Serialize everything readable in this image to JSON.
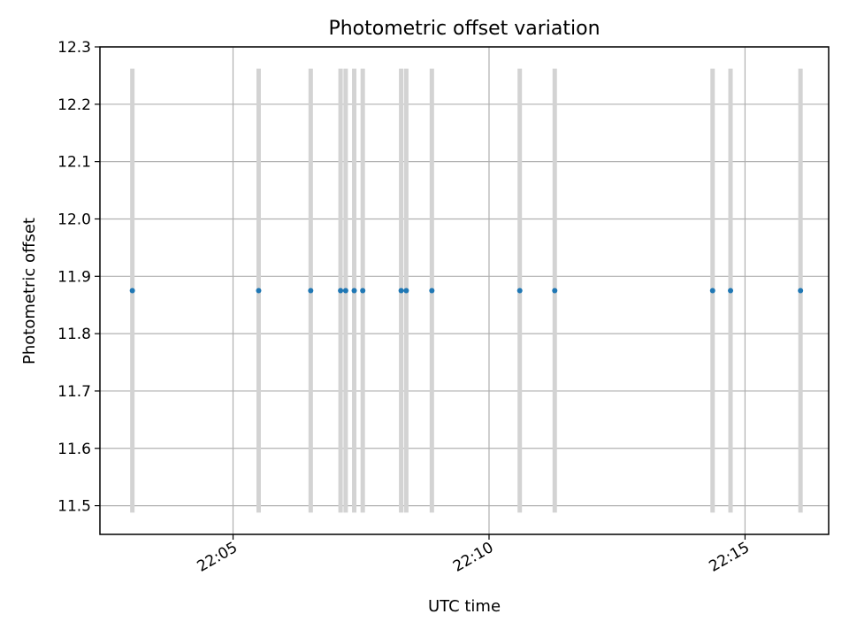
{
  "chart_data": {
    "type": "scatter",
    "title": "Photometric offset variation",
    "xlabel": "UTC time",
    "ylabel": "Photometric offset",
    "grid": true,
    "xlim": [
      "22:02:24",
      "22:16:38"
    ],
    "ylim": [
      11.45,
      12.3
    ],
    "x_ticks": [
      "22:05",
      "22:10",
      "22:15"
    ],
    "y_ticks": [
      11.5,
      11.6,
      11.7,
      11.8,
      11.9,
      12.0,
      12.1,
      12.2,
      12.3
    ],
    "point_color": "#1f77b4",
    "errorbar_color": "#d3d3d3",
    "points": [
      {
        "x": "22:03:02",
        "y": 11.875,
        "ylow": 11.488,
        "yhigh": 12.262
      },
      {
        "x": "22:05:30",
        "y": 11.875,
        "ylow": 11.488,
        "yhigh": 12.262
      },
      {
        "x": "22:06:31",
        "y": 11.875,
        "ylow": 11.488,
        "yhigh": 12.262
      },
      {
        "x": "22:07:06",
        "y": 11.875,
        "ylow": 11.488,
        "yhigh": 12.262
      },
      {
        "x": "22:07:12",
        "y": 11.875,
        "ylow": 11.488,
        "yhigh": 12.262
      },
      {
        "x": "22:07:22",
        "y": 11.875,
        "ylow": 11.488,
        "yhigh": 12.262
      },
      {
        "x": "22:07:32",
        "y": 11.875,
        "ylow": 11.488,
        "yhigh": 12.262
      },
      {
        "x": "22:08:17",
        "y": 11.875,
        "ylow": 11.488,
        "yhigh": 12.262
      },
      {
        "x": "22:08:23",
        "y": 11.875,
        "ylow": 11.488,
        "yhigh": 12.262
      },
      {
        "x": "22:08:53",
        "y": 11.875,
        "ylow": 11.488,
        "yhigh": 12.262
      },
      {
        "x": "22:10:36",
        "y": 11.875,
        "ylow": 11.488,
        "yhigh": 12.262
      },
      {
        "x": "22:11:17",
        "y": 11.875,
        "ylow": 11.488,
        "yhigh": 12.262
      },
      {
        "x": "22:14:22",
        "y": 11.875,
        "ylow": 11.488,
        "yhigh": 12.262
      },
      {
        "x": "22:14:43",
        "y": 11.875,
        "ylow": 11.488,
        "yhigh": 12.262
      },
      {
        "x": "22:16:05",
        "y": 11.875,
        "ylow": 11.488,
        "yhigh": 12.262
      }
    ]
  }
}
